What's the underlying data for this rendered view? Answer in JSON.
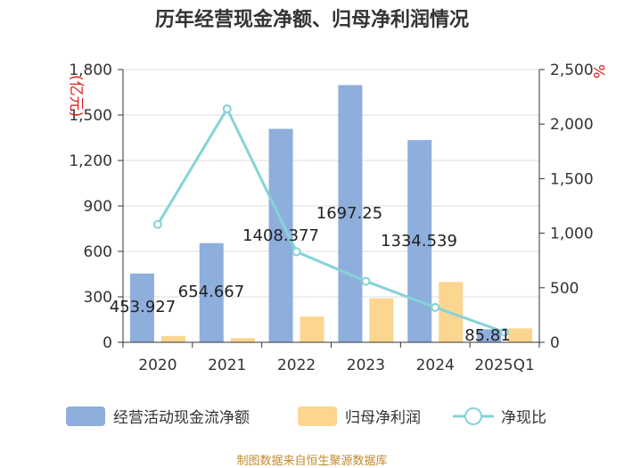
{
  "chart_data": {
    "type": "bar",
    "title": "历年经营现金净额、归母净利润情况",
    "categories": [
      "2020",
      "2021",
      "2022",
      "2023",
      "2024",
      "2025Q1"
    ],
    "series": [
      {
        "name": "经营活动现金流净额",
        "type": "bar",
        "axis": "left",
        "color": "#8eaedc",
        "values": [
          453.927,
          654.667,
          1408.377,
          1697.25,
          1334.539,
          85.81
        ],
        "labels": [
          "453.927",
          "654.667",
          "1408.377",
          "1697.25",
          "1334.539",
          "85.81"
        ]
      },
      {
        "name": "归母净利润",
        "type": "bar",
        "axis": "left",
        "color": "#fcd58f",
        "values": [
          42,
          28,
          170,
          290,
          398,
          92
        ]
      },
      {
        "name": "净现比",
        "type": "line",
        "axis": "right",
        "color": "#86d3d8",
        "values": [
          1080,
          2140,
          830,
          560,
          320,
          93
        ]
      }
    ],
    "left_axis": {
      "unit": "(亿元)",
      "min": 0,
      "max": 1800,
      "ticks": [
        "0",
        "300",
        "600",
        "900",
        "1,200",
        "1,500",
        "1,800"
      ]
    },
    "right_axis": {
      "unit": "%",
      "min": 0,
      "max": 2500,
      "ticks": [
        "0",
        "500",
        "1,000",
        "1,500",
        "2,000",
        "2,500"
      ]
    },
    "legend_position": "bottom",
    "grid": true
  },
  "source_note": "制图数据来自恒生聚源数据库"
}
